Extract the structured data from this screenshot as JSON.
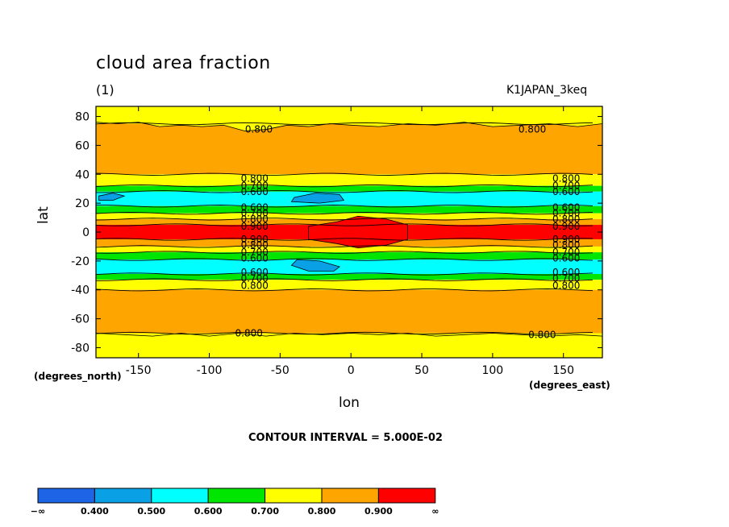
{
  "chart_data": {
    "type": "heatmap",
    "title": "cloud area fraction",
    "subtitle_left": "(1)",
    "subtitle_right": "K1JAPAN_3keq",
    "xlabel": "lon",
    "ylabel": "lat",
    "x_units": "(degrees_east)",
    "y_units": "(degrees_north)",
    "xlim": [
      -180,
      177.5
    ],
    "ylim": [
      -87,
      87
    ],
    "x_ticks": [
      -150,
      -100,
      -50,
      0,
      50,
      100,
      150
    ],
    "y_ticks": [
      -80,
      -60,
      -40,
      -20,
      0,
      20,
      40,
      60,
      80
    ],
    "contour_interval_text": "CONTOUR INTERVAL = 5.000E-02",
    "color_levels": [
      {
        "label": "−∞",
        "color": "#1e64e6"
      },
      {
        "label": "0.400",
        "color": "#0aa0e6"
      },
      {
        "label": "0.500",
        "color": "#00ffff"
      },
      {
        "label": "0.600",
        "color": "#00e600"
      },
      {
        "label": "0.700",
        "color": "#ffff00"
      },
      {
        "label": "0.800",
        "color": "#ffa500"
      },
      {
        "label": "0.900",
        "color": "#ff0000"
      },
      {
        "label": "∞",
        "color": null
      }
    ],
    "latitude_bands": [
      {
        "lat_range": [
          75,
          87
        ],
        "value_range": "0.700-0.800"
      },
      {
        "lat_range": [
          40,
          75
        ],
        "value_range": "0.800-0.900"
      },
      {
        "lat_range": [
          32,
          40
        ],
        "value_range": "0.700-0.800"
      },
      {
        "lat_range": [
          28,
          32
        ],
        "value_range": "0.600-0.700"
      },
      {
        "lat_range": [
          18,
          28
        ],
        "value_range": "0.500-0.600"
      },
      {
        "lat_range": [
          13,
          18
        ],
        "value_range": "0.600-0.700"
      },
      {
        "lat_range": [
          9,
          13
        ],
        "value_range": "0.700-0.800"
      },
      {
        "lat_range": [
          5,
          9
        ],
        "value_range": "0.800-0.900"
      },
      {
        "lat_range": [
          -5,
          5
        ],
        "value_range": ">0.900"
      },
      {
        "lat_range": [
          -10,
          -5
        ],
        "value_range": "0.800-0.900"
      },
      {
        "lat_range": [
          -14,
          -10
        ],
        "value_range": "0.700-0.800"
      },
      {
        "lat_range": [
          -19,
          -14
        ],
        "value_range": "0.600-0.700"
      },
      {
        "lat_range": [
          -29,
          -19
        ],
        "value_range": "0.500-0.600"
      },
      {
        "lat_range": [
          -33,
          -29
        ],
        "value_range": "0.600-0.700"
      },
      {
        "lat_range": [
          -40,
          -33
        ],
        "value_range": "0.700-0.800"
      },
      {
        "lat_range": [
          -70,
          -40
        ],
        "value_range": "0.800-0.900"
      },
      {
        "lat_range": [
          -87,
          -70
        ],
        "value_range": "0.700-0.800"
      }
    ],
    "contour_labels": [
      {
        "text": "0.800",
        "lon": -65,
        "lat": 71
      },
      {
        "text": "0.800",
        "lon": 128,
        "lat": 71
      },
      {
        "text": "0.800",
        "lon": -68,
        "lat": 37
      },
      {
        "text": "0.700",
        "lon": -68,
        "lat": 32
      },
      {
        "text": "0.600",
        "lon": -68,
        "lat": 28
      },
      {
        "text": "0.800",
        "lon": 152,
        "lat": 37
      },
      {
        "text": "0.700",
        "lon": 152,
        "lat": 32
      },
      {
        "text": "0.600",
        "lon": 152,
        "lat": 28
      },
      {
        "text": "0.600",
        "lon": -68,
        "lat": 17
      },
      {
        "text": "0.700",
        "lon": -68,
        "lat": 13
      },
      {
        "text": "0.800",
        "lon": -68,
        "lat": 9
      },
      {
        "text": "0.900",
        "lon": -68,
        "lat": 4
      },
      {
        "text": "0.600",
        "lon": 152,
        "lat": 17
      },
      {
        "text": "0.700",
        "lon": 152,
        "lat": 13
      },
      {
        "text": "0.800",
        "lon": 152,
        "lat": 9
      },
      {
        "text": "0.900",
        "lon": 152,
        "lat": 4
      },
      {
        "text": "0.900",
        "lon": -68,
        "lat": -5
      },
      {
        "text": "0.800",
        "lon": -68,
        "lat": -9
      },
      {
        "text": "0.700",
        "lon": -68,
        "lat": -14
      },
      {
        "text": "0.600",
        "lon": -68,
        "lat": -18
      },
      {
        "text": "0.900",
        "lon": 152,
        "lat": -5
      },
      {
        "text": "0.800",
        "lon": 152,
        "lat": -9
      },
      {
        "text": "0.700",
        "lon": 152,
        "lat": -14
      },
      {
        "text": "0.600",
        "lon": 152,
        "lat": -18
      },
      {
        "text": "0.600",
        "lon": -68,
        "lat": -28
      },
      {
        "text": "0.700",
        "lon": -68,
        "lat": -32
      },
      {
        "text": "0.800",
        "lon": -68,
        "lat": -37
      },
      {
        "text": "0.600",
        "lon": 152,
        "lat": -28
      },
      {
        "text": "0.700",
        "lon": 152,
        "lat": -32
      },
      {
        "text": "0.800",
        "lon": 152,
        "lat": -37
      },
      {
        "text": "0.800",
        "lon": -72,
        "lat": -70
      },
      {
        "text": "0.800",
        "lon": 135,
        "lat": -71
      }
    ]
  }
}
